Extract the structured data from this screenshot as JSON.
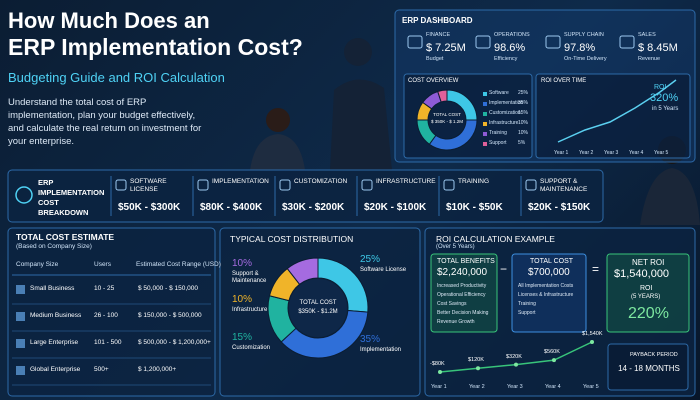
{
  "header": {
    "title_line1": "How Much Does an",
    "title_line2": "ERP Implementation Cost?",
    "subtitle": "Budgeting Guide and ROI Calculation",
    "intro": "Understand the total cost of ERP implementation, plan your budget effectively, and calculate the real return on investment for your enterprise."
  },
  "dashboard": {
    "title": "ERP DASHBOARD",
    "kpis": [
      {
        "label": "FINANCE",
        "value": "$ 7.25M",
        "caption": "Budget"
      },
      {
        "label": "OPERATIONS",
        "value": "98.6%",
        "caption": "Efficiency"
      },
      {
        "label": "SUPPLY CHAIN",
        "value": "97.8%",
        "caption": "On-Time Delivery"
      },
      {
        "label": "SALES",
        "value": "$ 8.45M",
        "caption": "Revenue"
      }
    ],
    "cost_overview": {
      "title": "COST OVERVIEW",
      "center_label": "TOTAL COST",
      "center_value": "$ 350K - $ 1.2M",
      "slices": [
        {
          "label": "Software",
          "value": 25,
          "value_label": "25%",
          "color": "#3ec7e6"
        },
        {
          "label": "Implementation",
          "value": 35,
          "value_label": "35%",
          "color": "#2f6fd8"
        },
        {
          "label": "Customization",
          "value": 15,
          "value_label": "15%",
          "color": "#20b3a0"
        },
        {
          "label": "Infrastructure",
          "value": 10,
          "value_label": "10%",
          "color": "#f0b429"
        },
        {
          "label": "Training",
          "value": 10,
          "value_label": "10%",
          "color": "#8e5bd6"
        },
        {
          "label": "Support",
          "value": 5,
          "value_label": "5%",
          "color": "#e0609a"
        }
      ]
    },
    "roi_over_time": {
      "title": "ROI OVER TIME",
      "label": "ROI",
      "value": "320%",
      "caption": "in 5 Years",
      "years": [
        "Year 1",
        "Year 2",
        "Year 3",
        "Year 4",
        "Year 5"
      ]
    }
  },
  "breakdown": {
    "title": "ERP IMPLEMENTATION COST BREAKDOWN",
    "items": [
      {
        "name": "SOFTWARE LICENSE",
        "range": "$50K - $300K"
      },
      {
        "name": "IMPLEMENTATION",
        "range": "$80K - $400K"
      },
      {
        "name": "CUSTOMIZATION",
        "range": "$30K - $200K"
      },
      {
        "name": "INFRASTRUCTURE",
        "range": "$20K - $100K"
      },
      {
        "name": "TRAINING",
        "range": "$10K - $50K"
      },
      {
        "name": "SUPPORT & MAINTENANCE",
        "range": "$20K - $150K"
      }
    ]
  },
  "cost_table": {
    "title": "TOTAL COST ESTIMATE",
    "subtitle": "(Based on Company Size)",
    "columns": [
      "Company Size",
      "Users",
      "Estimated Cost Range (USD)"
    ],
    "rows": [
      [
        "Small Business",
        "10 - 25",
        "$ 50,000 - $ 150,000"
      ],
      [
        "Medium Business",
        "26 - 100",
        "$ 150,000 - $ 500,000"
      ],
      [
        "Large Enterprise",
        "101 - 500",
        "$ 500,000 - $ 1,200,000+"
      ],
      [
        "Global Enterprise",
        "500+",
        "$ 1,200,000+"
      ]
    ]
  },
  "distribution": {
    "title": "TYPICAL COST DISTRIBUTION",
    "center_label": "TOTAL COST",
    "center_value": "$350K - $1.2M",
    "slices": [
      {
        "label": "Software License",
        "value": 25,
        "value_label": "25%",
        "color": "#3ec7e6"
      },
      {
        "label": "Implementation",
        "value": 35,
        "value_label": "35%",
        "color": "#2f6fd8"
      },
      {
        "label": "Customization",
        "value": 15,
        "value_label": "15%",
        "color": "#20b3a0"
      },
      {
        "label": "Infrastructure",
        "value": 10,
        "value_label": "10%",
        "color": "#f0b429"
      },
      {
        "label": "Support & Maintenance",
        "value": 10,
        "value_label": "10%",
        "color": "#a56be0"
      }
    ]
  },
  "roi": {
    "title": "ROI CALCULATION EXAMPLE",
    "subtitle": "(Over 5 Years)",
    "operators": [
      "−",
      "="
    ],
    "benefits": {
      "title": "TOTAL BENEFITS",
      "value": "$2,240,000",
      "items": [
        "Increased Productivity",
        "Operational Efficiency",
        "Cost Savings",
        "Better Decision Making",
        "Revenue Growth"
      ]
    },
    "cost": {
      "title": "TOTAL COST",
      "value": "$700,000",
      "items": [
        "All Implementation Costs",
        "Licenses & Infrastructure",
        "Training",
        "Support"
      ]
    },
    "net": {
      "title": "NET ROI",
      "value": "$1,540,000",
      "roi_label": "ROI",
      "period": "(5 YEARS)",
      "roi_value": "220%"
    },
    "cumulative": [
      {
        "year": "Year 1",
        "value": -80,
        "label": "-$80K"
      },
      {
        "year": "Year 2",
        "value": 120,
        "label": "$120K"
      },
      {
        "year": "Year 3",
        "value": 320,
        "label": "$320K"
      },
      {
        "year": "Year 4",
        "value": 560,
        "label": "$560K"
      },
      {
        "year": "Year 5",
        "value": 1540,
        "label": "$1,540K"
      }
    ],
    "payback": {
      "title": "PAYBACK PERIOD",
      "value": "14 - 18 MONTHS"
    }
  }
}
